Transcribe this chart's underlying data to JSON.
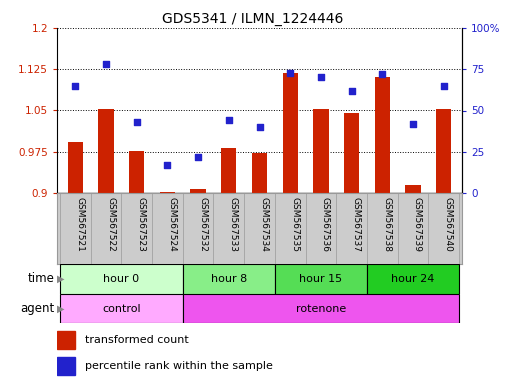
{
  "title": "GDS5341 / ILMN_1224446",
  "samples": [
    "GSM567521",
    "GSM567522",
    "GSM567523",
    "GSM567524",
    "GSM567532",
    "GSM567533",
    "GSM567534",
    "GSM567535",
    "GSM567536",
    "GSM567537",
    "GSM567538",
    "GSM567539",
    "GSM567540"
  ],
  "bar_values": [
    0.993,
    1.052,
    0.977,
    0.901,
    0.907,
    0.982,
    0.972,
    1.118,
    1.052,
    1.046,
    1.11,
    0.915,
    1.052
  ],
  "dot_values": [
    65,
    78,
    43,
    17,
    22,
    44,
    40,
    73,
    70,
    62,
    72,
    42,
    65
  ],
  "bar_color": "#cc2200",
  "dot_color": "#2222cc",
  "ylim_left": [
    0.9,
    1.2
  ],
  "ylim_right": [
    0,
    100
  ],
  "yticks_left": [
    0.9,
    0.975,
    1.05,
    1.125,
    1.2
  ],
  "yticks_right": [
    0,
    25,
    50,
    75,
    100
  ],
  "ytick_labels_left": [
    "0.9",
    "0.975",
    "1.05",
    "1.125",
    "1.2"
  ],
  "ytick_labels_right": [
    "0",
    "25",
    "50",
    "75",
    "100%"
  ],
  "time_groups": [
    {
      "label": "hour 0",
      "start": 0,
      "end": 4,
      "color": "#ccffcc"
    },
    {
      "label": "hour 8",
      "start": 4,
      "end": 7,
      "color": "#88ee88"
    },
    {
      "label": "hour 15",
      "start": 7,
      "end": 10,
      "color": "#55dd55"
    },
    {
      "label": "hour 24",
      "start": 10,
      "end": 13,
      "color": "#22cc22"
    }
  ],
  "agent_groups": [
    {
      "label": "control",
      "start": 0,
      "end": 4,
      "color": "#ffaaff"
    },
    {
      "label": "rotenone",
      "start": 4,
      "end": 13,
      "color": "#ee55ee"
    }
  ],
  "legend_bar_label": "transformed count",
  "legend_dot_label": "percentile rank within the sample",
  "background_color": "#ffffff",
  "sample_bg_color": "#cccccc",
  "sample_border_color": "#999999"
}
